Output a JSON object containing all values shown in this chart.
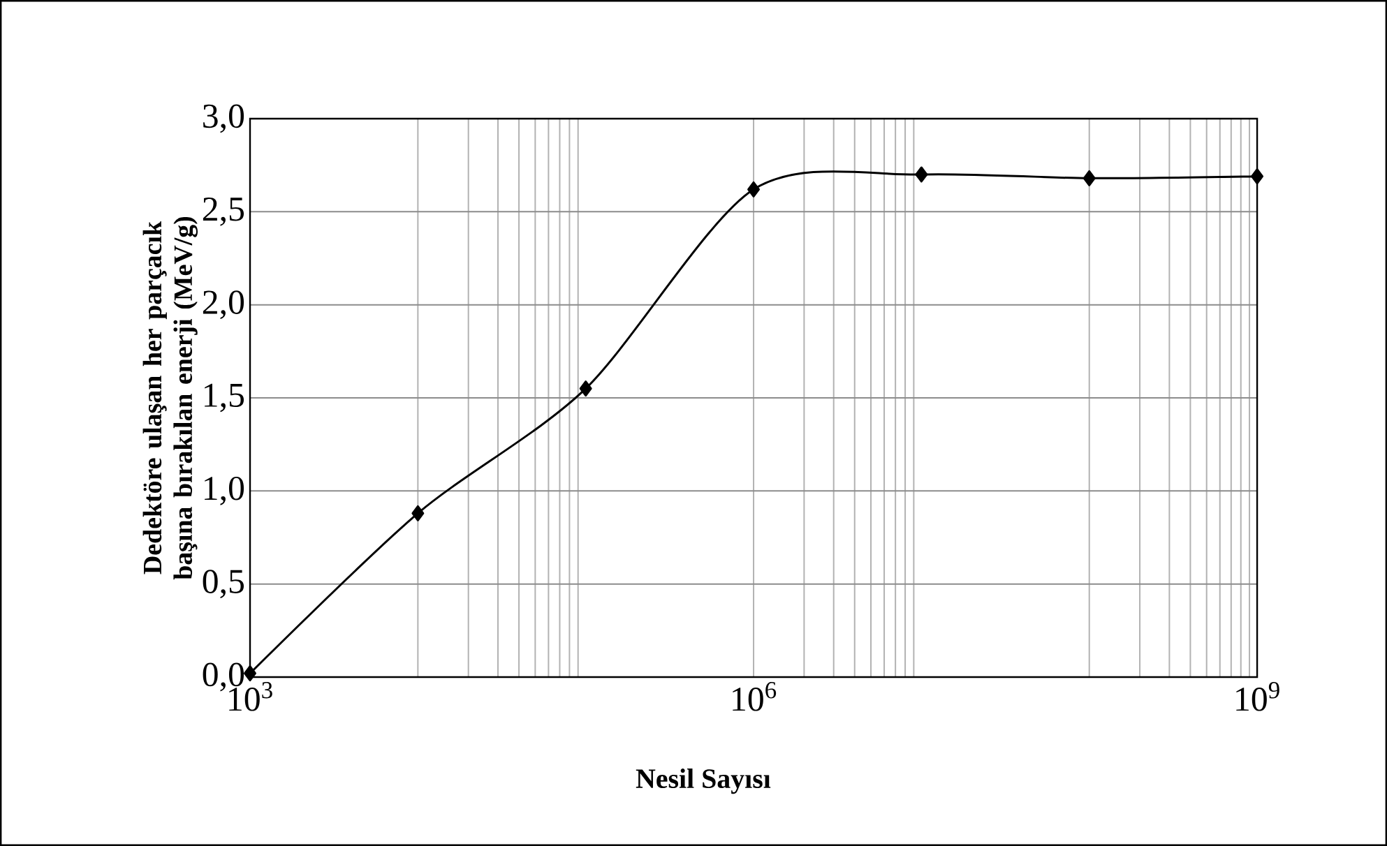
{
  "chart_data": {
    "type": "line",
    "xlabel": "Nesil Sayısı",
    "ylabel": "Dedektöre ulaşan her parçacık başına bırakılan enerji (MeV/g)",
    "x": [
      1000,
      10000,
      100000,
      1000000,
      10000000,
      100000000,
      1000000000
    ],
    "series": [
      {
        "color": "#000000",
        "values": [
          0.02,
          0.88,
          1.55,
          2.62,
          2.7,
          2.68,
          2.69
        ]
      }
    ],
    "log": "x",
    "xlim": [
      1000,
      1000000000
    ],
    "xticks": [
      {
        "value": 1000,
        "label": "10$^{3}$"
      },
      {
        "value": 10000,
        "label": null
      },
      {
        "value": 20000,
        "label": null
      },
      {
        "value": 30000,
        "label": null
      },
      {
        "value": 40000,
        "label": null
      },
      {
        "value": 50000,
        "label": null
      },
      {
        "value": 60000,
        "label": null
      },
      {
        "value": 70000,
        "label": null
      },
      {
        "value": 80000,
        "label": null
      },
      {
        "value": 90000,
        "label": null
      },
      {
        "value": 1000000,
        "label": "10$^{6}$"
      },
      {
        "value": 2000000,
        "label": null
      },
      {
        "value": 3000000,
        "label": null
      },
      {
        "value": 4000000,
        "label": null
      },
      {
        "value": 5000000,
        "label": null
      },
      {
        "value": 6000000,
        "label": null
      },
      {
        "value": 7000000,
        "label": null
      },
      {
        "value": 8000000,
        "label": null
      },
      {
        "value": 9000000,
        "label": null
      },
      {
        "value": 100000000,
        "label": null
      },
      {
        "value": 200000000,
        "label": null
      },
      {
        "value": 300000000,
        "label": null
      },
      {
        "value": 400000000,
        "label": null
      },
      {
        "value": 500000000,
        "label": null
      },
      {
        "value": 600000000,
        "label": null
      },
      {
        "value": 700000000,
        "label": null
      },
      {
        "value": 800000000,
        "label": null
      },
      {
        "value": 900000000,
        "label": null
      },
      {
        "value": 1000000000,
        "label": "10$^{9}$"
      }
    ],
    "ylim": [
      0,
      3
    ],
    "yticks": [
      {
        "value": 0,
        "label": "0,0"
      },
      {
        "value": 0.5,
        "label": "0,5"
      },
      {
        "value": 1,
        "label": "1,0"
      },
      {
        "value": 1.5,
        "label": "1,5"
      },
      {
        "value": 2,
        "label": "2,0"
      },
      {
        "value": 2.5,
        "label": "2,5"
      },
      {
        "value": 3,
        "label": "3,0"
      }
    ],
    "grid": true,
    "marker": "diamond",
    "line_style": "solid"
  }
}
